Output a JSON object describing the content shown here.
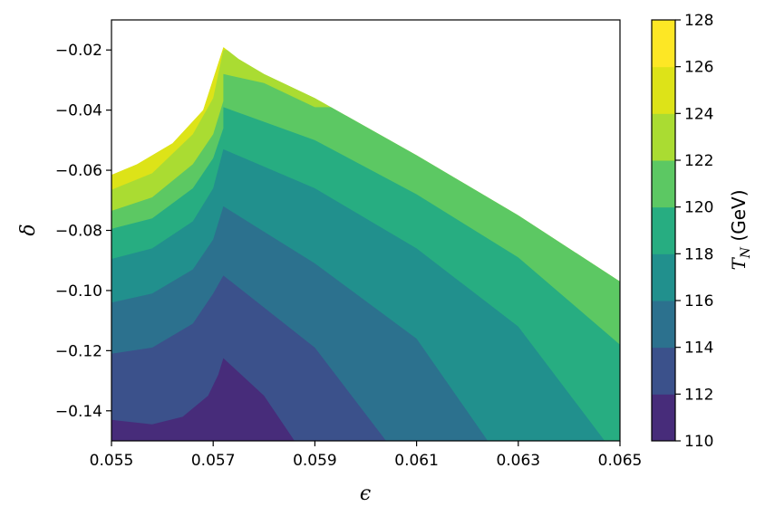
{
  "chart_data": {
    "type": "contourf",
    "xlabel": "ϵ",
    "ylabel": "δ",
    "xlim": [
      0.055,
      0.065
    ],
    "ylim": [
      -0.15,
      -0.01
    ],
    "x_ticks": [
      "0.055",
      "0.057",
      "0.059",
      "0.061",
      "0.063",
      "0.065"
    ],
    "x_tick_values": [
      0.055,
      0.057,
      0.059,
      0.061,
      0.063,
      0.065
    ],
    "y_ticks": [
      "−0.02",
      "−0.04",
      "−0.06",
      "−0.08",
      "−0.10",
      "−0.12",
      "−0.14"
    ],
    "y_tick_values": [
      -0.02,
      -0.04,
      -0.06,
      -0.08,
      -0.1,
      -0.12,
      -0.14
    ],
    "colorbar": {
      "label_main": "T",
      "label_sub": "N",
      "label_unit": " (GeV)",
      "levels": [
        110,
        112,
        114,
        116,
        118,
        120,
        122,
        124,
        126,
        128
      ],
      "tick_labels": [
        "110",
        "112",
        "114",
        "116",
        "118",
        "120",
        "122",
        "124",
        "126",
        "128"
      ],
      "colors": [
        "#472c7a",
        "#3b518b",
        "#2c718e",
        "#21908d",
        "#27ad81",
        "#5cc863",
        "#aadc32",
        "#dde318",
        "#fde725"
      ]
    },
    "region_boundary": {
      "description_points": [
        [
          0.055,
          -0.0615
        ],
        [
          0.0555,
          -0.058
        ],
        [
          0.0562,
          -0.051
        ],
        [
          0.0568,
          -0.04
        ],
        [
          0.0572,
          -0.019
        ],
        [
          0.0575,
          -0.023
        ],
        [
          0.058,
          -0.028
        ],
        [
          0.059,
          -0.036
        ],
        [
          0.061,
          -0.055
        ],
        [
          0.063,
          -0.075
        ],
        [
          0.065,
          -0.097
        ]
      ]
    },
    "level_lines": [
      {
        "level": 124,
        "pts": [
          [
            0.055,
            -0.0665
          ],
          [
            0.0558,
            -0.061
          ],
          [
            0.0566,
            -0.048
          ],
          [
            0.057,
            -0.036
          ],
          [
            0.0572,
            -0.02
          ]
        ]
      },
      {
        "level": 122,
        "pts": [
          [
            0.055,
            -0.0735
          ],
          [
            0.0558,
            -0.069
          ],
          [
            0.0566,
            -0.058
          ],
          [
            0.057,
            -0.048
          ],
          [
            0.0572,
            -0.037
          ],
          [
            0.0572,
            -0.028
          ],
          [
            0.058,
            -0.031
          ],
          [
            0.059,
            -0.039
          ]
        ]
      },
      {
        "level": 120,
        "pts": [
          [
            0.055,
            -0.0795
          ],
          [
            0.0558,
            -0.076
          ],
          [
            0.0566,
            -0.066
          ],
          [
            0.057,
            -0.056
          ],
          [
            0.0572,
            -0.046
          ],
          [
            0.0572,
            -0.039
          ],
          [
            0.059,
            -0.05
          ],
          [
            0.061,
            -0.068
          ],
          [
            0.063,
            -0.089
          ],
          [
            0.065,
            -0.118
          ]
        ]
      },
      {
        "level": 118,
        "pts": [
          [
            0.055,
            -0.0895
          ],
          [
            0.0558,
            -0.086
          ],
          [
            0.0566,
            -0.077
          ],
          [
            0.057,
            -0.066
          ],
          [
            0.0572,
            -0.053
          ],
          [
            0.059,
            -0.066
          ],
          [
            0.061,
            -0.086
          ],
          [
            0.063,
            -0.112
          ],
          [
            0.0647,
            -0.15
          ]
        ]
      },
      {
        "level": 116,
        "pts": [
          [
            0.055,
            -0.104
          ],
          [
            0.0558,
            -0.101
          ],
          [
            0.0566,
            -0.093
          ],
          [
            0.057,
            -0.083
          ],
          [
            0.0572,
            -0.072
          ],
          [
            0.059,
            -0.091
          ],
          [
            0.061,
            -0.116
          ],
          [
            0.0624,
            -0.15
          ]
        ]
      },
      {
        "level": 114,
        "pts": [
          [
            0.055,
            -0.121
          ],
          [
            0.0558,
            -0.119
          ],
          [
            0.0566,
            -0.111
          ],
          [
            0.057,
            -0.101
          ],
          [
            0.0572,
            -0.095
          ],
          [
            0.059,
            -0.119
          ],
          [
            0.0604,
            -0.15
          ]
        ]
      },
      {
        "level": 112,
        "pts": [
          [
            0.055,
            -0.143
          ],
          [
            0.0558,
            -0.1445
          ],
          [
            0.0564,
            -0.142
          ],
          [
            0.0569,
            -0.135
          ],
          [
            0.0571,
            -0.128
          ],
          [
            0.0572,
            -0.1225
          ],
          [
            0.058,
            -0.135
          ],
          [
            0.0586,
            -0.15
          ]
        ]
      }
    ]
  }
}
